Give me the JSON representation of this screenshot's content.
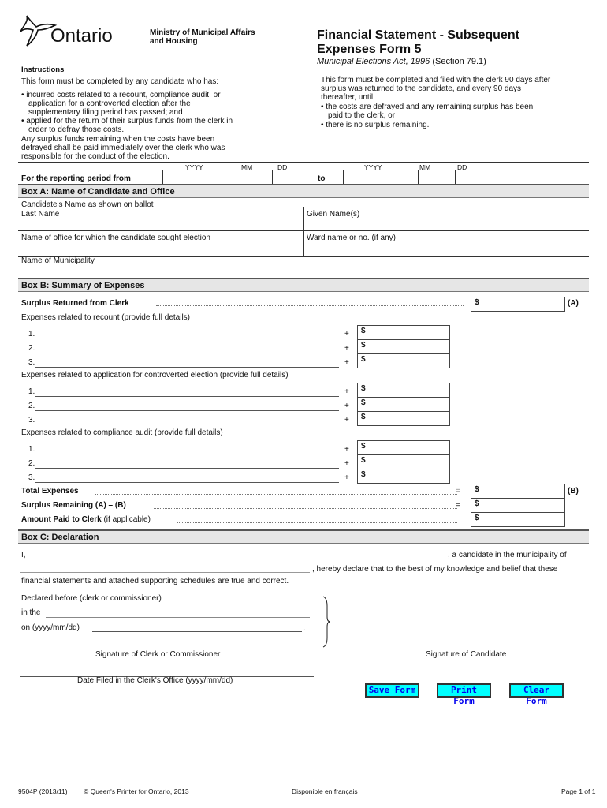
{
  "header": {
    "logo_text": "Ontario",
    "ministry": [
      "Ministry of Municipal Affairs",
      "and Housing"
    ],
    "title": [
      "Financial Statement - Subsequent",
      "Expenses Form 5"
    ],
    "act_italic": "Municipal Elections Act, 1996",
    "act_section": " (Section 79.1)"
  },
  "instructions": {
    "heading": "Instructions",
    "intro": "This form must be completed by any candidate who has:",
    "bullets": [
      "incurred costs related to a recount, compliance audit, or",
      "application for a controverted election after the",
      "supplementary filing period has passed; and",
      "applied for the return of their surplus funds from the clerk in",
      "order to defray those costs."
    ],
    "closing": [
      "Any surplus funds remaining when the costs have been",
      "defrayed shall be paid immediately over the clerk who was",
      "responsible for the conduct of the election."
    ],
    "right": [
      "This form must be completed and filed with the clerk 90 days after",
      "surplus was returned to the candidate, and every 90 days",
      "thereafter, until",
      "the costs are defrayed and any remaining surplus has been",
      "paid to the clerk, or",
      "there is no surplus remaining."
    ]
  },
  "period": {
    "label": "For the reporting period from",
    "to": "to",
    "yyyy": "YYYY",
    "mm": "MM",
    "dd": "DD"
  },
  "box_a": {
    "title": "Box A: Name of Candidate and Office",
    "ballot": "Candidate's Name as shown on ballot",
    "last": "Last Name",
    "given": "Given Name(s)",
    "office": "Name of office for which the candidate sought election",
    "ward": "Ward name or no. (if any)",
    "municipality": "Name of Municipality"
  },
  "box_b": {
    "title": "Box B: Summary of Expenses",
    "surplus": "Surplus Returned from Clerk",
    "a": "(A)",
    "b": "(B)",
    "dollar": "$",
    "plus": "+",
    "eq": "=",
    "recount": "Expenses related to recount (provide full details)",
    "controverted": "Expenses related to application for controverted election (provide full details)",
    "audit": "Expenses related to compliance audit (provide full details)",
    "nums": [
      "1.",
      "2.",
      "3."
    ],
    "total": "Total Expenses",
    "remaining": "Surplus Remaining (A) – (B)",
    "paid": "Amount Paid to Clerk",
    "paid_note": " (if applicable)"
  },
  "box_c": {
    "title": "Box C: Declaration",
    "i": "I,",
    "candidate_in": ", a candidate in the municipality of",
    "hereby": ", hereby declare that to the best of my knowledge and belief that these",
    "true": "financial statements and attached supporting schedules are true and correct.",
    "declared": "Declared before (clerk or commissioner)",
    "in_the": "in the",
    "on": "on (yyyy/mm/dd)",
    "period": ".",
    "sig_clerk": "Signature of Clerk or Commissioner",
    "sig_cand": "Signature of Candidate",
    "date_filed": "Date Filed in the Clerk's Office (yyyy/mm/dd)"
  },
  "buttons": {
    "save": "Save Form",
    "print": "Print Form",
    "clear": "Clear Form"
  },
  "footer": {
    "code": "9504P (2013/11)",
    "copyright": "© Queen's Printer for Ontario, 2013",
    "french": "Disponible en français",
    "page": "Page 1 of 1"
  }
}
